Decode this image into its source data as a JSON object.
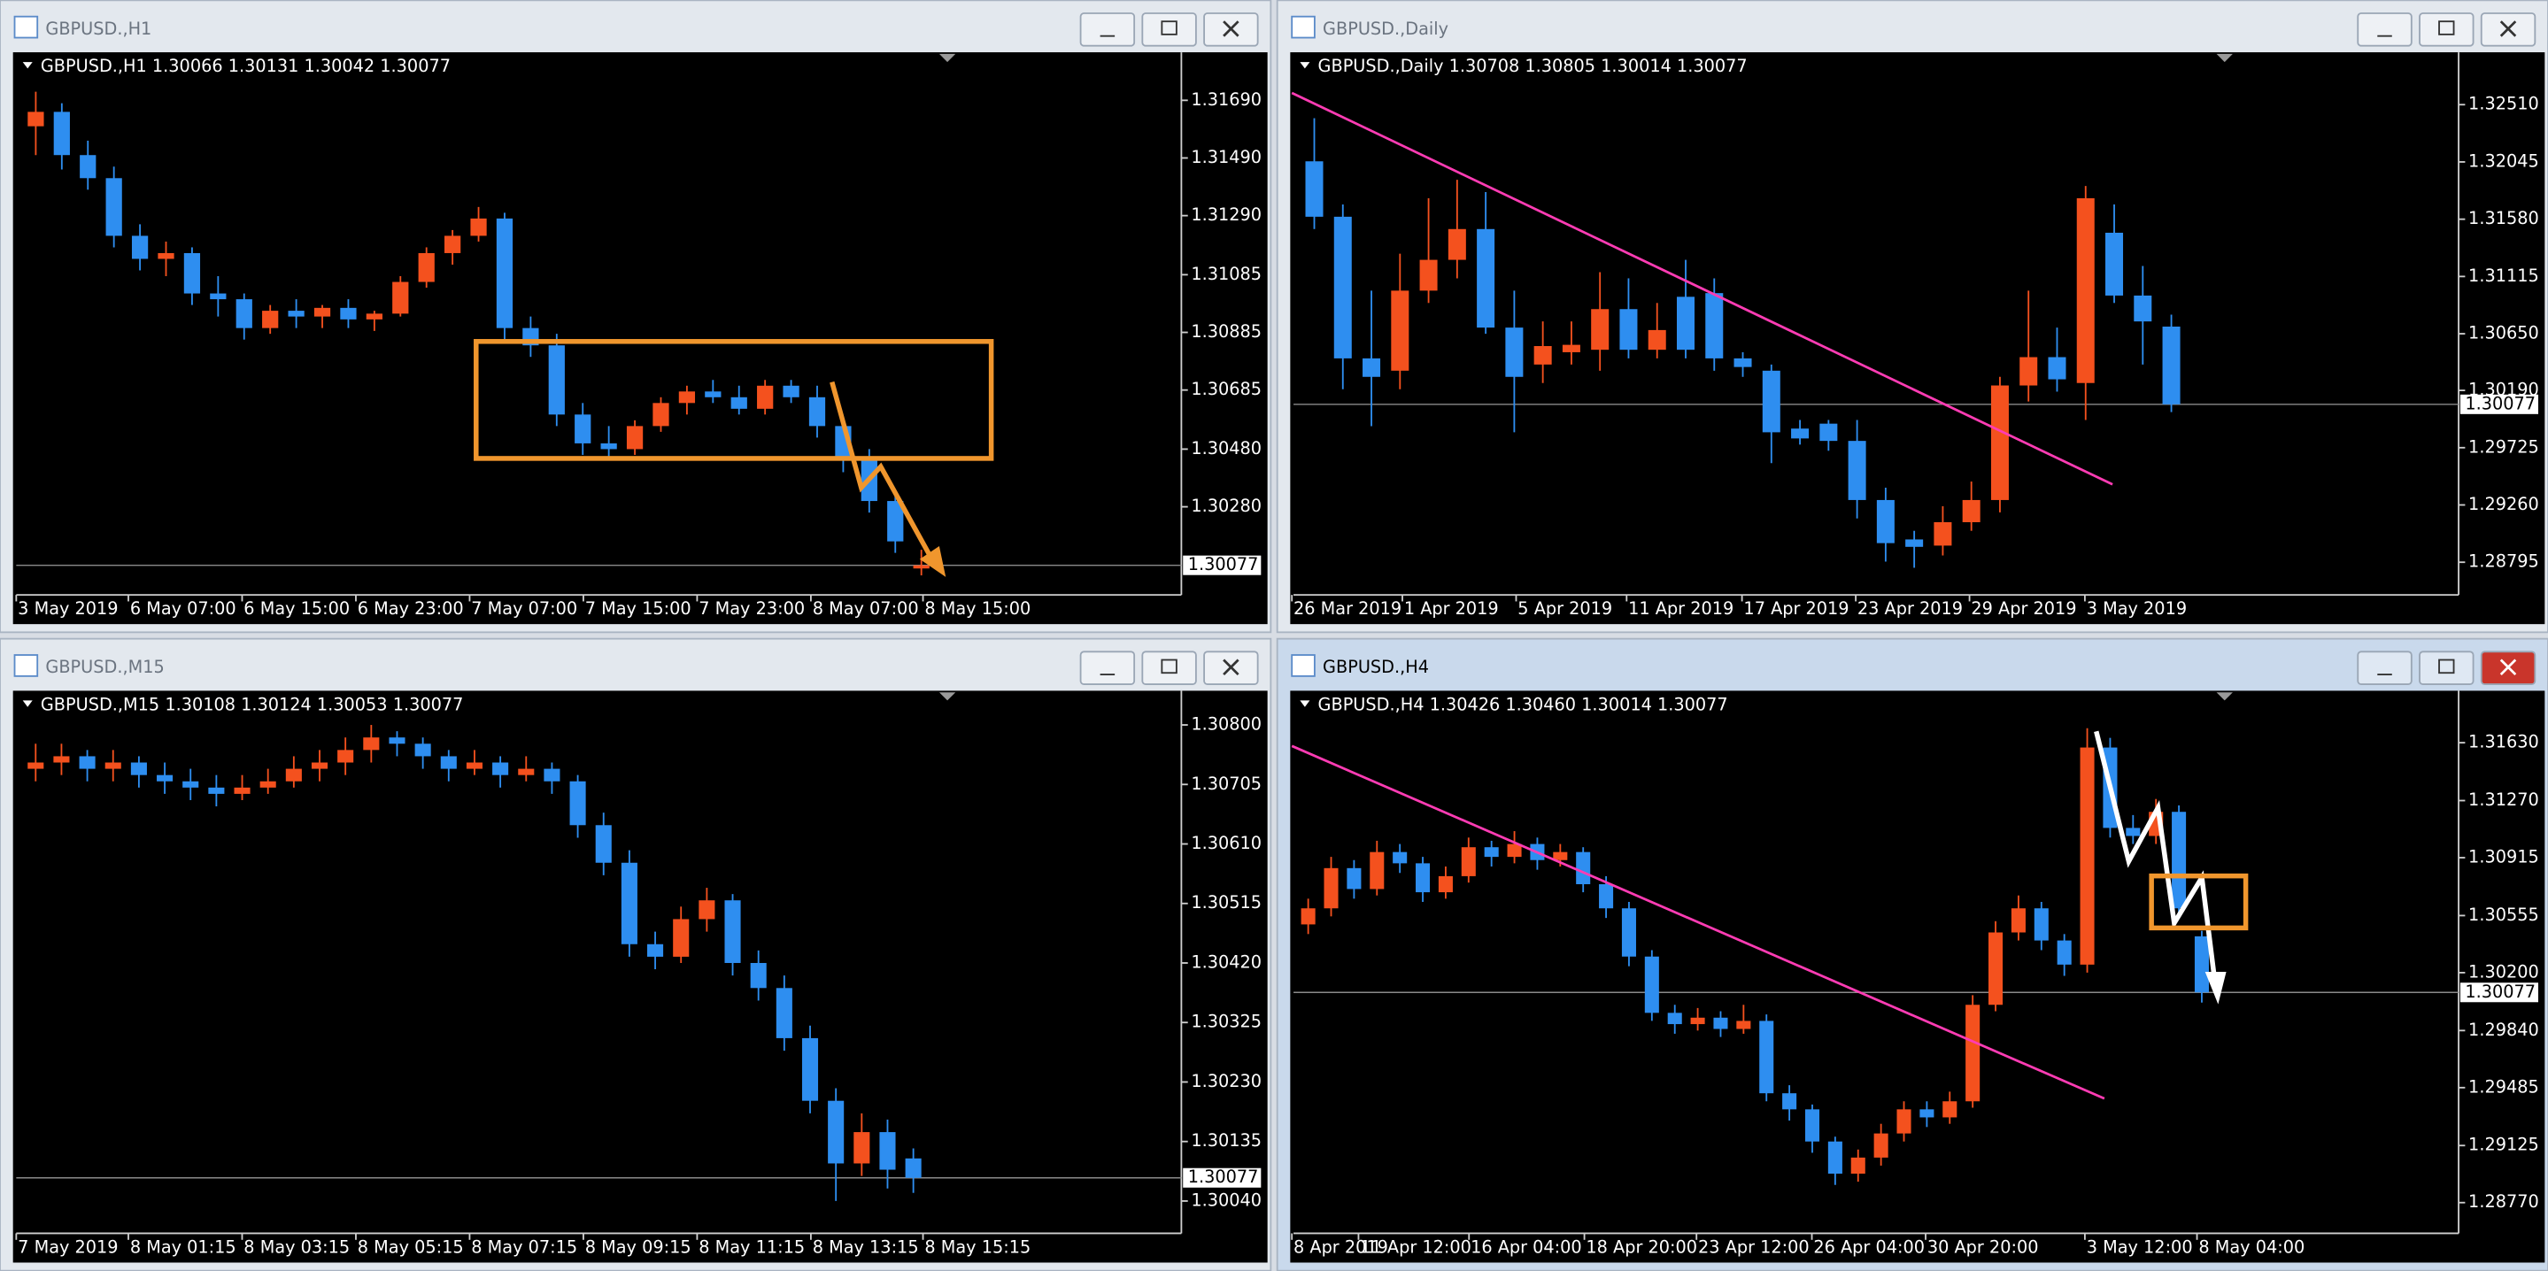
{
  "windows": [
    {
      "title": "GBPUSD.,H1",
      "header": "GBPUSD.,H1  1.30066 1.30131 1.30042 1.30077",
      "ylim": [
        1.2998,
        1.31851
      ],
      "yticks": [
        {
          "value": 1.3169,
          "label": "1.31690"
        },
        {
          "value": 1.3149,
          "label": "1.31490"
        },
        {
          "value": 1.3129,
          "label": "1.31290"
        },
        {
          "value": 1.31085,
          "label": "1.31085"
        },
        {
          "value": 1.30885,
          "label": "1.30885"
        },
        {
          "value": 1.30685,
          "label": "1.30685"
        },
        {
          "value": 1.3048,
          "label": "1.30480"
        },
        {
          "value": 1.3028,
          "label": "1.30280"
        }
      ],
      "last": 1.30077,
      "xlabels": [
        "3 May 2019",
        "6 May 07:00",
        "6 May 15:00",
        "6 May 23:00",
        "7 May 07:00",
        "7 May 15:00",
        "7 May 23:00",
        "8 May 07:00",
        "8 May 15:00"
      ],
      "candles": [
        [
          1.316,
          1.3172,
          1.315,
          1.3165
        ],
        [
          1.3165,
          1.3168,
          1.3145,
          1.315
        ],
        [
          1.315,
          1.3155,
          1.3138,
          1.3142
        ],
        [
          1.3142,
          1.3146,
          1.3118,
          1.3122
        ],
        [
          1.3122,
          1.3126,
          1.311,
          1.3114
        ],
        [
          1.3114,
          1.312,
          1.3108,
          1.3116
        ],
        [
          1.3116,
          1.3118,
          1.3098,
          1.3102
        ],
        [
          1.3102,
          1.3108,
          1.3094,
          1.31
        ],
        [
          1.31,
          1.3102,
          1.3086,
          1.309
        ],
        [
          1.309,
          1.3098,
          1.3088,
          1.3096
        ],
        [
          1.3096,
          1.31,
          1.309,
          1.3094
        ],
        [
          1.3094,
          1.3098,
          1.309,
          1.3097
        ],
        [
          1.3097,
          1.31,
          1.309,
          1.3093
        ],
        [
          1.3093,
          1.3096,
          1.3089,
          1.3095
        ],
        [
          1.3095,
          1.3108,
          1.3094,
          1.3106
        ],
        [
          1.3106,
          1.3118,
          1.3104,
          1.3116
        ],
        [
          1.3116,
          1.3124,
          1.3112,
          1.3122
        ],
        [
          1.3122,
          1.3132,
          1.312,
          1.3128
        ],
        [
          1.3128,
          1.313,
          1.3086,
          1.309
        ],
        [
          1.309,
          1.3094,
          1.308,
          1.3084
        ],
        [
          1.3084,
          1.3088,
          1.3056,
          1.306
        ],
        [
          1.306,
          1.3064,
          1.3046,
          1.305
        ],
        [
          1.305,
          1.3056,
          1.3044,
          1.3048
        ],
        [
          1.3048,
          1.3058,
          1.3046,
          1.3056
        ],
        [
          1.3056,
          1.3066,
          1.3054,
          1.3064
        ],
        [
          1.3064,
          1.307,
          1.306,
          1.3068
        ],
        [
          1.3068,
          1.3072,
          1.3064,
          1.3066
        ],
        [
          1.3066,
          1.307,
          1.306,
          1.3062
        ],
        [
          1.3062,
          1.3072,
          1.306,
          1.307
        ],
        [
          1.307,
          1.3072,
          1.3064,
          1.3066
        ],
        [
          1.3066,
          1.307,
          1.3052,
          1.3056
        ],
        [
          1.3056,
          1.3058,
          1.304,
          1.3044
        ],
        [
          1.3044,
          1.3048,
          1.3026,
          1.303
        ],
        [
          1.303,
          1.3032,
          1.3012,
          1.3016
        ],
        [
          1.30066,
          1.30131,
          1.30042,
          1.30077
        ]
      ]
    },
    {
      "title": "GBPUSD.,Daily",
      "header": "GBPUSD.,Daily  1.30708 1.30805 1.30014 1.30077",
      "ylim": [
        1.28543,
        1.32922
      ],
      "yticks": [
        {
          "value": 1.3251,
          "label": "1.32510"
        },
        {
          "value": 1.32045,
          "label": "1.32045"
        },
        {
          "value": 1.3158,
          "label": "1.31580"
        },
        {
          "value": 1.31115,
          "label": "1.31115"
        },
        {
          "value": 1.3065,
          "label": "1.30650"
        },
        {
          "value": 1.3019,
          "label": "1.30190"
        },
        {
          "value": 1.29725,
          "label": "1.29725"
        },
        {
          "value": 1.2926,
          "label": "1.29260"
        },
        {
          "value": 1.28795,
          "label": "1.28795"
        }
      ],
      "last": 1.30077,
      "xlabels": [
        "26 Mar 2019",
        "1 Apr 2019",
        "5 Apr 2019",
        "11 Apr 2019",
        "17 Apr 2019",
        "23 Apr 2019",
        "29 Apr 2019",
        "3 May 2019"
      ],
      "candles": [
        [
          1.3205,
          1.324,
          1.315,
          1.316
        ],
        [
          1.316,
          1.317,
          1.302,
          1.3045
        ],
        [
          1.3045,
          1.31,
          1.299,
          1.303
        ],
        [
          1.3035,
          1.313,
          1.302,
          1.31
        ],
        [
          1.31,
          1.3175,
          1.309,
          1.3125
        ],
        [
          1.3125,
          1.319,
          1.311,
          1.315
        ],
        [
          1.315,
          1.318,
          1.3065,
          1.307
        ],
        [
          1.307,
          1.31,
          1.2985,
          1.303
        ],
        [
          1.304,
          1.3075,
          1.3025,
          1.3055
        ],
        [
          1.305,
          1.3075,
          1.304,
          1.3056
        ],
        [
          1.3052,
          1.3115,
          1.3035,
          1.3085
        ],
        [
          1.3085,
          1.311,
          1.3045,
          1.3052
        ],
        [
          1.3052,
          1.309,
          1.3045,
          1.3068
        ],
        [
          1.3095,
          1.3125,
          1.3045,
          1.3052
        ],
        [
          1.3098,
          1.311,
          1.3035,
          1.3045
        ],
        [
          1.3045,
          1.305,
          1.303,
          1.3038
        ],
        [
          1.3035,
          1.304,
          1.296,
          1.2985
        ],
        [
          1.2988,
          1.2995,
          1.2975,
          1.298
        ],
        [
          1.2992,
          1.2995,
          1.297,
          1.2978
        ],
        [
          1.2978,
          1.2995,
          1.2915,
          1.293
        ],
        [
          1.293,
          1.294,
          1.288,
          1.2895
        ],
        [
          1.2898,
          1.2905,
          1.2875,
          1.2892
        ],
        [
          1.2893,
          1.2925,
          1.2885,
          1.2912
        ],
        [
          1.2912,
          1.2945,
          1.2905,
          1.293
        ],
        [
          1.293,
          1.303,
          1.292,
          1.3023
        ],
        [
          1.3023,
          1.31,
          1.301,
          1.3046
        ],
        [
          1.3046,
          1.307,
          1.3018,
          1.3028
        ],
        [
          1.3025,
          1.3185,
          1.2995,
          1.3175
        ],
        [
          1.3147,
          1.317,
          1.309,
          1.3096
        ],
        [
          1.3096,
          1.312,
          1.304,
          1.3075
        ],
        [
          1.30708,
          1.30805,
          1.30014,
          1.30077
        ]
      ]
    },
    {
      "title": "GBPUSD.,M15",
      "header": "GBPUSD.,M15  1.30108 1.30124 1.30053 1.30077",
      "ylim": [
        1.29991,
        1.30852
      ],
      "yticks": [
        {
          "value": 1.308,
          "label": "1.30800"
        },
        {
          "value": 1.30705,
          "label": "1.30705"
        },
        {
          "value": 1.3061,
          "label": "1.30610"
        },
        {
          "value": 1.30515,
          "label": "1.30515"
        },
        {
          "value": 1.3042,
          "label": "1.30420"
        },
        {
          "value": 1.30325,
          "label": "1.30325"
        },
        {
          "value": 1.3023,
          "label": "1.30230"
        },
        {
          "value": 1.30135,
          "label": "1.30135"
        },
        {
          "value": 1.3004,
          "label": "1.30040"
        }
      ],
      "last": 1.30077,
      "xlabels": [
        "7 May 2019",
        "8 May 01:15",
        "8 May 03:15",
        "8 May 05:15",
        "8 May 07:15",
        "8 May 09:15",
        "8 May 11:15",
        "8 May 13:15",
        "8 May 15:15"
      ],
      "candles": [
        [
          1.3073,
          1.3077,
          1.3071,
          1.3074
        ],
        [
          1.3074,
          1.3077,
          1.3072,
          1.3075
        ],
        [
          1.3075,
          1.3076,
          1.3071,
          1.3073
        ],
        [
          1.3073,
          1.3076,
          1.3071,
          1.3074
        ],
        [
          1.3074,
          1.3075,
          1.307,
          1.3072
        ],
        [
          1.3072,
          1.3074,
          1.3069,
          1.3071
        ],
        [
          1.3071,
          1.3073,
          1.3068,
          1.307
        ],
        [
          1.307,
          1.3072,
          1.3067,
          1.3069
        ],
        [
          1.3069,
          1.3072,
          1.3068,
          1.307
        ],
        [
          1.307,
          1.3073,
          1.3069,
          1.3071
        ],
        [
          1.3071,
          1.3075,
          1.307,
          1.3073
        ],
        [
          1.3073,
          1.3076,
          1.3071,
          1.3074
        ],
        [
          1.3074,
          1.3078,
          1.3072,
          1.3076
        ],
        [
          1.3076,
          1.308,
          1.3074,
          1.3078
        ],
        [
          1.3078,
          1.3079,
          1.3075,
          1.3077
        ],
        [
          1.3077,
          1.3078,
          1.3073,
          1.3075
        ],
        [
          1.3075,
          1.3076,
          1.3071,
          1.3073
        ],
        [
          1.3073,
          1.3076,
          1.3072,
          1.3074
        ],
        [
          1.3074,
          1.3075,
          1.307,
          1.3072
        ],
        [
          1.3072,
          1.3075,
          1.3071,
          1.3073
        ],
        [
          1.3073,
          1.3074,
          1.3069,
          1.3071
        ],
        [
          1.3071,
          1.3072,
          1.3062,
          1.3064
        ],
        [
          1.3064,
          1.3066,
          1.3056,
          1.3058
        ],
        [
          1.3058,
          1.306,
          1.3043,
          1.3045
        ],
        [
          1.3045,
          1.3047,
          1.3041,
          1.3043
        ],
        [
          1.3043,
          1.3051,
          1.3042,
          1.3049
        ],
        [
          1.3049,
          1.3054,
          1.3047,
          1.3052
        ],
        [
          1.3052,
          1.3053,
          1.304,
          1.3042
        ],
        [
          1.3042,
          1.3044,
          1.3036,
          1.3038
        ],
        [
          1.3038,
          1.304,
          1.3028,
          1.303
        ],
        [
          1.303,
          1.3032,
          1.3018,
          1.302
        ],
        [
          1.302,
          1.3022,
          1.3004,
          1.301
        ],
        [
          1.301,
          1.3018,
          1.3008,
          1.3015
        ],
        [
          1.3015,
          1.3017,
          1.3006,
          1.3009
        ],
        [
          1.30108,
          1.30124,
          1.30053,
          1.30077
        ]
      ]
    },
    {
      "title": "GBPUSD.,H4",
      "header": "GBPUSD.,H4  1.30426 1.30460 1.30014 1.30077",
      "ylim": [
        1.28589,
        1.31943
      ],
      "yticks": [
        {
          "value": 1.3163,
          "label": "1.31630"
        },
        {
          "value": 1.3127,
          "label": "1.31270"
        },
        {
          "value": 1.30915,
          "label": "1.30915"
        },
        {
          "value": 1.30555,
          "label": "1.30555"
        },
        {
          "value": 1.302,
          "label": "1.30200"
        },
        {
          "value": 1.2984,
          "label": "1.29840"
        },
        {
          "value": 1.29485,
          "label": "1.29485"
        },
        {
          "value": 1.29125,
          "label": "1.29125"
        },
        {
          "value": 1.2877,
          "label": "1.28770"
        }
      ],
      "last": 1.30077,
      "xlabels": [
        "8 Apr 2019",
        "11 Apr 12:00",
        "16 Apr 04:00",
        "18 Apr 20:00",
        "23 Apr 12:00",
        "26 Apr 04:00",
        "30 Apr 20:00",
        "3 May 12:00",
        "8 May 04:00"
      ],
      "candles": [
        [
          1.305,
          1.3066,
          1.3044,
          1.306
        ],
        [
          1.306,
          1.3092,
          1.3055,
          1.3085
        ],
        [
          1.3085,
          1.309,
          1.3066,
          1.3072
        ],
        [
          1.3072,
          1.3102,
          1.3068,
          1.3095
        ],
        [
          1.3095,
          1.31,
          1.3082,
          1.3088
        ],
        [
          1.3088,
          1.3092,
          1.3064,
          1.307
        ],
        [
          1.307,
          1.3086,
          1.3066,
          1.308
        ],
        [
          1.308,
          1.3104,
          1.3076,
          1.3098
        ],
        [
          1.3098,
          1.3102,
          1.3086,
          1.3092
        ],
        [
          1.3092,
          1.3108,
          1.3088,
          1.31
        ],
        [
          1.31,
          1.3104,
          1.3084,
          1.309
        ],
        [
          1.309,
          1.31,
          1.3086,
          1.3095
        ],
        [
          1.3095,
          1.3098,
          1.307,
          1.3075
        ],
        [
          1.3075,
          1.308,
          1.3054,
          1.306
        ],
        [
          1.306,
          1.3064,
          1.3024,
          1.303
        ],
        [
          1.303,
          1.3034,
          1.299,
          1.2995
        ],
        [
          1.2995,
          1.3,
          1.2982,
          1.2988
        ],
        [
          1.2988,
          1.2998,
          1.2984,
          1.2992
        ],
        [
          1.2992,
          1.2996,
          1.298,
          1.2985
        ],
        [
          1.2985,
          1.3,
          1.2982,
          1.299
        ],
        [
          1.299,
          1.2994,
          1.294,
          1.2945
        ],
        [
          1.2945,
          1.295,
          1.2928,
          1.2935
        ],
        [
          1.2935,
          1.2938,
          1.2908,
          1.2915
        ],
        [
          1.2915,
          1.2918,
          1.2888,
          1.2895
        ],
        [
          1.2895,
          1.291,
          1.289,
          1.2905
        ],
        [
          1.2905,
          1.2926,
          1.29,
          1.292
        ],
        [
          1.292,
          1.294,
          1.2915,
          1.2935
        ],
        [
          1.2935,
          1.294,
          1.2924,
          1.293
        ],
        [
          1.293,
          1.2946,
          1.2926,
          1.294
        ],
        [
          1.294,
          1.3006,
          1.2936,
          1.3
        ],
        [
          1.3,
          1.3052,
          1.2996,
          1.3045
        ],
        [
          1.3045,
          1.3068,
          1.304,
          1.306
        ],
        [
          1.306,
          1.3064,
          1.3034,
          1.304
        ],
        [
          1.304,
          1.3044,
          1.3018,
          1.3025
        ],
        [
          1.3025,
          1.3172,
          1.302,
          1.316
        ],
        [
          1.316,
          1.3166,
          1.3104,
          1.311
        ],
        [
          1.311,
          1.3118,
          1.31,
          1.3105
        ],
        [
          1.3105,
          1.3128,
          1.31,
          1.312
        ],
        [
          1.312,
          1.3124,
          1.3054,
          1.306
        ],
        [
          1.30426,
          1.3046,
          1.30014,
          1.30077
        ]
      ]
    }
  ]
}
